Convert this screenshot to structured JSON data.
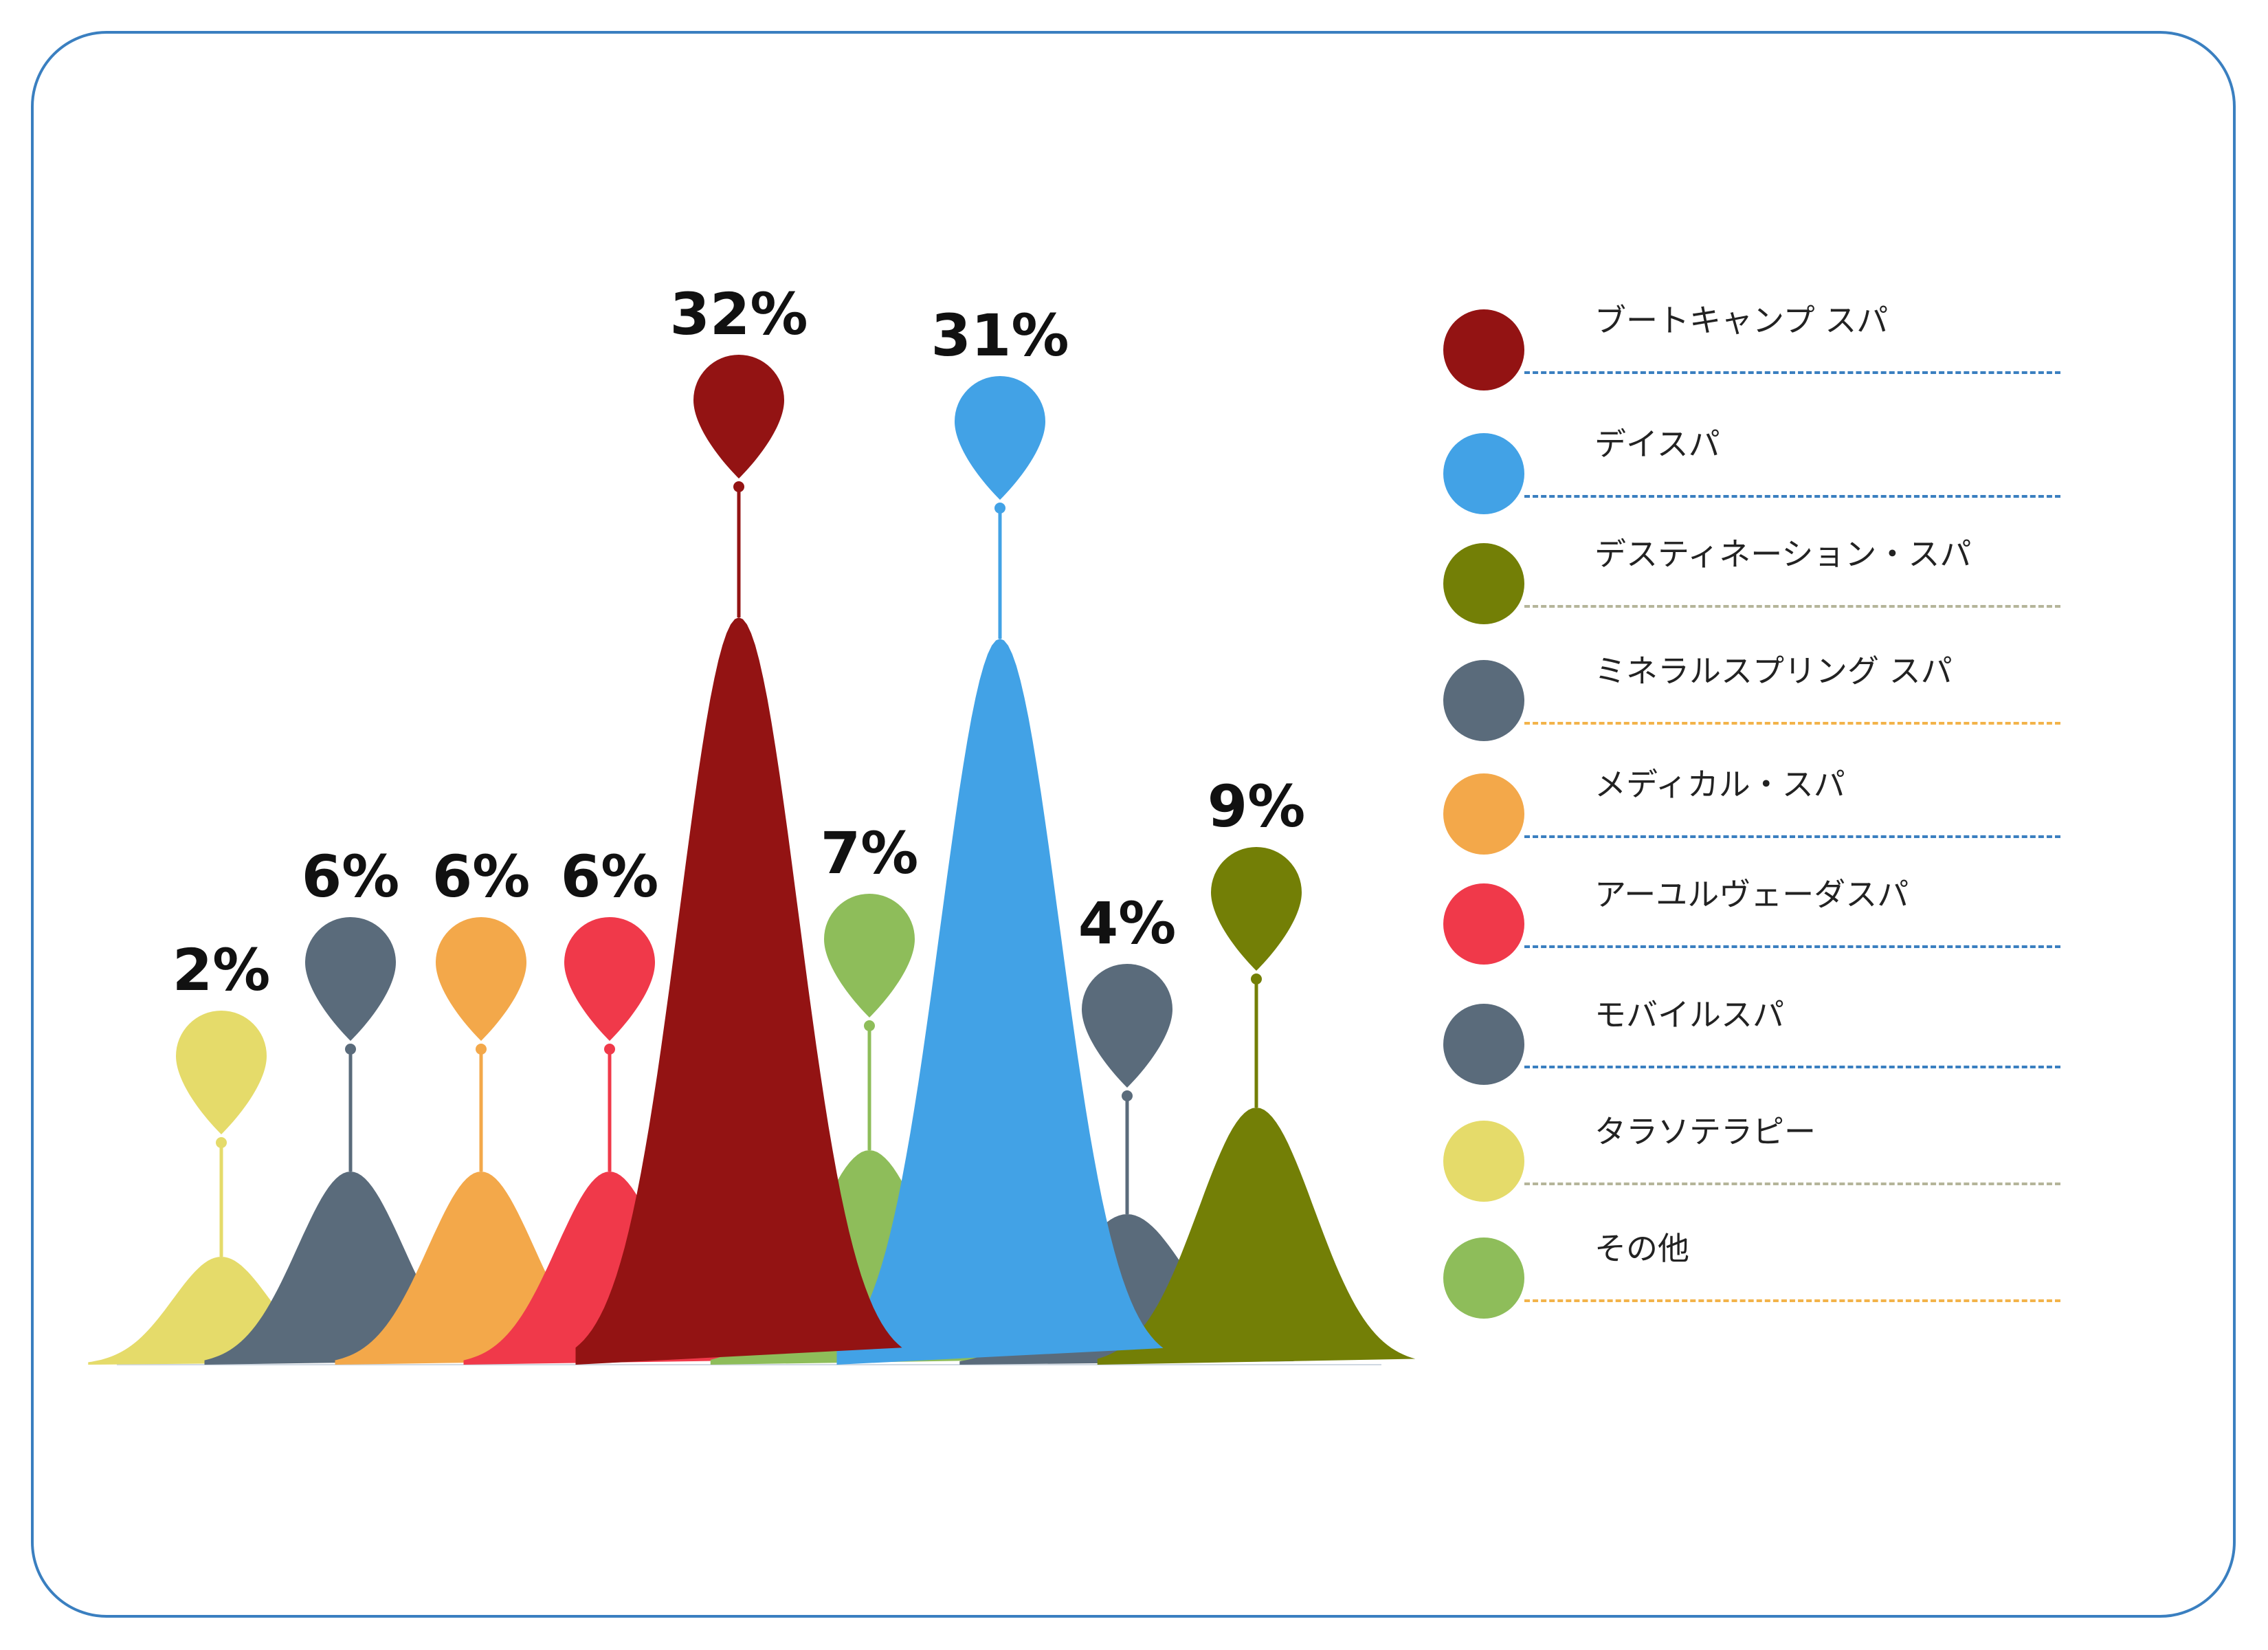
{
  "chart_data": {
    "type": "area",
    "categories": [
      "タラソテラピー",
      "モバイルスパ",
      "メディカル・スパ",
      "アーユルヴェーダスパ",
      "ブートキャンプ スパ",
      "その他",
      "デイスパ",
      "ミネラルスプリング スパ",
      "デスティネーション・スパ"
    ],
    "values": [
      2,
      6,
      6,
      6,
      32,
      7,
      31,
      4,
      9
    ],
    "labels": [
      "2%",
      "6%",
      "6%",
      "6%",
      "32%",
      "7%",
      "31%",
      "4%",
      "9%"
    ],
    "unit": "%",
    "colors": [
      "#e5db6a",
      "#5a6b7b",
      "#f3a84a",
      "#f0394a",
      "#931313",
      "#8ebd5a",
      "#42a2e6",
      "#5a6b7b",
      "#737f06"
    ]
  },
  "legend": {
    "items": [
      {
        "label": "ブートキャンプ スパ",
        "color": "#931313",
        "line_color": "#3a7fc0"
      },
      {
        "label": "デイスパ",
        "color": "#42a2e6",
        "line_color": "#3a7fc0"
      },
      {
        "label": "デスティネーション・スパ",
        "color": "#737f06",
        "line_color": "#b5b59a"
      },
      {
        "label": "ミネラルスプリング スパ",
        "color": "#5a6b7b",
        "line_color": "#f3b34a"
      },
      {
        "label": "メディカル・スパ",
        "color": "#f3a84a",
        "line_color": "#3a7fc0"
      },
      {
        "label": "アーユルヴェーダスパ",
        "color": "#f0394a",
        "line_color": "#3a7fc0"
      },
      {
        "label": "モバイルスパ",
        "color": "#5a6b7b",
        "line_color": "#3a7fc0"
      },
      {
        "label": "タラソテラピー",
        "color": "#e5db6a",
        "line_color": "#b5b59a"
      },
      {
        "label": "その他",
        "color": "#8ebd5a",
        "line_color": "#f3b34a"
      }
    ]
  }
}
